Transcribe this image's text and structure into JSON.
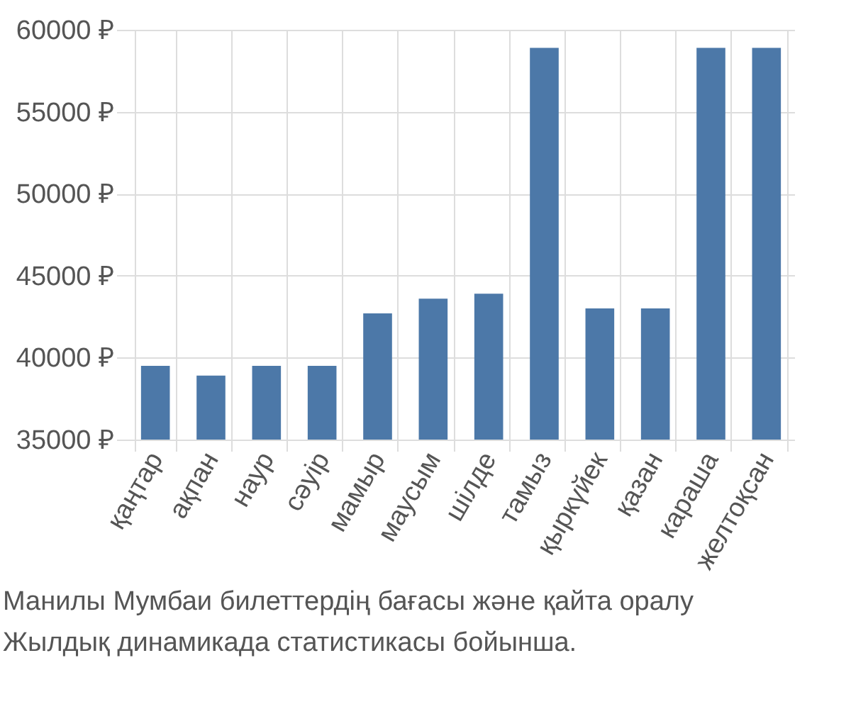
{
  "chart_data": {
    "type": "bar",
    "categories": [
      "қаңтар",
      "ақпан",
      "наур",
      "сәуір",
      "мамыр",
      "маусым",
      "шілде",
      "тамыз",
      "қыркүйек",
      "қазан",
      "караша",
      "желтоқсан"
    ],
    "series": [
      {
        "color": "#4c78a8",
        "values": [
          39500,
          38900,
          39500,
          39500,
          42700,
          43600,
          43900,
          58900,
          43000,
          43000,
          58900,
          58900
        ]
      }
    ],
    "ylim": [
      35000,
      60000
    ],
    "yticks": [
      {
        "value": 35000,
        "label": "35000 ₽"
      },
      {
        "value": 40000,
        "label": "40000 ₽"
      },
      {
        "value": 45000,
        "label": "45000 ₽"
      },
      {
        "value": 50000,
        "label": "50000 ₽"
      },
      {
        "value": 55000,
        "label": "55000 ₽"
      },
      {
        "value": 60000,
        "label": "60000 ₽"
      }
    ],
    "grid": true,
    "annotations": [
      "Манилы Мумбаи билеттердің бағасы және қайта оралу",
      "Жылдық динамикада статистикасы бойынша."
    ]
  }
}
